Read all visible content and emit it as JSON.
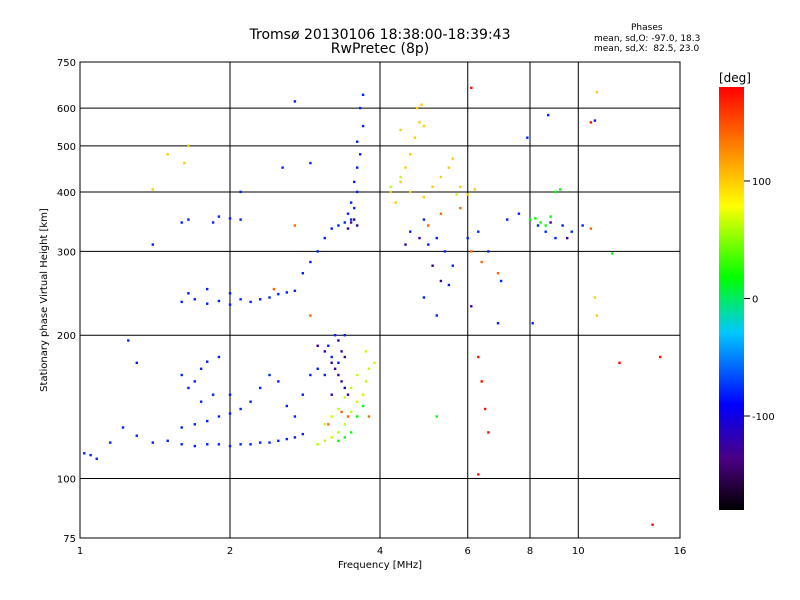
{
  "header": {
    "title_line1": "Tromsø 20130106 18:38:00-18:39:43",
    "title_line2": "RwPretec (8p)",
    "stats_title": "Phases",
    "stats_o": "mean, sd,O: -97.0, 18.3",
    "stats_x": "mean, sd,X:  82.5, 23.0"
  },
  "chart_data": {
    "type": "scatter",
    "xlabel": "Frequency [MHz]",
    "ylabel": "Stationary phase Virtual Height [km]",
    "x_scale": "log",
    "y_scale": "log",
    "xlim": [
      1,
      16
    ],
    "ylim": [
      75,
      750
    ],
    "x_ticks": [
      1,
      2,
      4,
      6,
      8,
      10,
      16
    ],
    "y_ticks": [
      75,
      100,
      200,
      300,
      400,
      500,
      600,
      750
    ],
    "grid": true,
    "colorbar": {
      "title": "[deg]",
      "range": [
        -180,
        180
      ],
      "ticks": [
        100,
        0,
        -100
      ],
      "colors": [
        "#000000",
        "#4b0082",
        "#0000ff",
        "#00c8ff",
        "#00ff00",
        "#ffff00",
        "#ff8000",
        "#ff0000"
      ]
    },
    "series": [
      {
        "phase": -90,
        "points": [
          [
            1.02,
            113
          ],
          [
            1.05,
            112
          ],
          [
            1.08,
            110
          ],
          [
            1.15,
            119
          ],
          [
            1.22,
            128
          ],
          [
            1.3,
            123
          ],
          [
            1.4,
            119
          ],
          [
            1.5,
            120
          ],
          [
            1.6,
            118
          ],
          [
            1.7,
            117
          ],
          [
            1.8,
            118
          ],
          [
            1.9,
            118
          ],
          [
            2.0,
            117
          ],
          [
            2.1,
            118
          ],
          [
            2.2,
            118
          ],
          [
            2.3,
            119
          ],
          [
            2.4,
            119
          ],
          [
            2.5,
            120
          ],
          [
            2.6,
            121
          ],
          [
            2.7,
            122
          ],
          [
            2.8,
            124
          ],
          [
            1.6,
            128
          ],
          [
            1.7,
            130
          ],
          [
            1.8,
            132
          ],
          [
            1.9,
            135
          ],
          [
            2.0,
            137
          ],
          [
            2.1,
            140
          ],
          [
            1.75,
            145
          ],
          [
            1.85,
            150
          ],
          [
            1.65,
            155
          ],
          [
            1.7,
            160
          ],
          [
            1.6,
            165
          ],
          [
            1.75,
            170
          ],
          [
            1.8,
            176
          ],
          [
            1.9,
            180
          ],
          [
            2.0,
            150
          ],
          [
            2.2,
            145
          ],
          [
            2.3,
            155
          ],
          [
            2.5,
            160
          ],
          [
            2.6,
            142
          ],
          [
            2.7,
            135
          ],
          [
            2.4,
            165
          ],
          [
            2.8,
            150
          ],
          [
            2.9,
            165
          ],
          [
            3.0,
            170
          ],
          [
            3.1,
            165
          ],
          [
            3.2,
            180
          ],
          [
            3.3,
            175
          ],
          [
            3.15,
            190
          ],
          [
            3.25,
            200
          ],
          [
            3.4,
            200
          ],
          [
            1.6,
            235
          ],
          [
            1.7,
            238
          ],
          [
            1.8,
            233
          ],
          [
            1.9,
            236
          ],
          [
            2.0,
            232
          ],
          [
            2.1,
            238
          ],
          [
            2.2,
            235
          ],
          [
            2.3,
            238
          ],
          [
            2.4,
            240
          ],
          [
            2.5,
            244
          ],
          [
            2.6,
            246
          ],
          [
            2.7,
            248
          ],
          [
            1.65,
            245
          ],
          [
            1.8,
            250
          ],
          [
            2.0,
            245
          ],
          [
            1.6,
            345
          ],
          [
            1.65,
            350
          ],
          [
            1.85,
            345
          ],
          [
            1.9,
            355
          ],
          [
            2.0,
            352
          ],
          [
            2.1,
            350
          ],
          [
            2.8,
            270
          ],
          [
            2.9,
            285
          ],
          [
            3.0,
            300
          ],
          [
            3.1,
            320
          ],
          [
            3.2,
            335
          ],
          [
            3.3,
            340
          ],
          [
            3.4,
            345
          ],
          [
            3.5,
            350
          ],
          [
            3.5,
            380
          ],
          [
            3.6,
            400
          ],
          [
            3.55,
            420
          ],
          [
            3.6,
            450
          ],
          [
            3.65,
            480
          ],
          [
            3.6,
            510
          ],
          [
            3.7,
            550
          ],
          [
            3.65,
            600
          ],
          [
            3.7,
            640
          ],
          [
            3.45,
            360
          ],
          [
            3.55,
            370
          ],
          [
            4.6,
            330
          ],
          [
            4.9,
            350
          ],
          [
            5.0,
            310
          ],
          [
            5.2,
            320
          ],
          [
            5.4,
            300
          ],
          [
            5.6,
            280
          ],
          [
            6.0,
            320
          ],
          [
            6.3,
            330
          ],
          [
            6.6,
            300
          ],
          [
            7.2,
            350
          ],
          [
            7.6,
            360
          ],
          [
            8.3,
            340
          ],
          [
            8.6,
            330
          ],
          [
            9.0,
            320
          ],
          [
            9.3,
            340
          ],
          [
            9.7,
            330
          ],
          [
            10.2,
            340
          ],
          [
            2.7,
            620
          ],
          [
            2.9,
            460
          ],
          [
            2.55,
            450
          ],
          [
            2.1,
            400
          ],
          [
            1.4,
            310
          ],
          [
            5.5,
            255
          ],
          [
            7.0,
            260
          ],
          [
            5.2,
            220
          ],
          [
            6.9,
            212
          ],
          [
            8.1,
            212
          ],
          [
            4.9,
            240
          ],
          [
            8.7,
            580
          ],
          [
            10.8,
            565
          ],
          [
            1.3,
            175
          ],
          [
            1.25,
            195
          ],
          [
            7.9,
            520
          ]
        ]
      },
      {
        "phase": -130,
        "points": [
          [
            3.0,
            190
          ],
          [
            3.1,
            185
          ],
          [
            3.2,
            175
          ],
          [
            3.3,
            165
          ],
          [
            3.35,
            160
          ],
          [
            3.4,
            155
          ],
          [
            3.45,
            150
          ],
          [
            3.2,
            150
          ],
          [
            3.25,
            170
          ],
          [
            3.35,
            185
          ],
          [
            3.3,
            195
          ],
          [
            3.4,
            180
          ],
          [
            3.5,
            345
          ],
          [
            3.6,
            340
          ],
          [
            3.55,
            350
          ],
          [
            3.45,
            335
          ],
          [
            4.5,
            310
          ],
          [
            4.8,
            320
          ],
          [
            5.1,
            280
          ],
          [
            5.3,
            260
          ],
          [
            6.1,
            230
          ],
          [
            8.8,
            345
          ],
          [
            9.5,
            320
          ]
        ]
      },
      {
        "phase": 0,
        "points": [
          [
            3.3,
            120
          ],
          [
            3.4,
            122
          ],
          [
            3.5,
            125
          ],
          [
            3.6,
            135
          ],
          [
            3.7,
            142
          ],
          [
            8.0,
            350
          ],
          [
            8.2,
            352
          ],
          [
            8.4,
            345
          ],
          [
            8.6,
            340
          ],
          [
            8.8,
            355
          ],
          [
            9.0,
            400
          ],
          [
            9.2,
            405
          ],
          [
            11.7,
            297
          ],
          [
            5.2,
            135
          ]
        ]
      },
      {
        "phase": 60,
        "points": [
          [
            3.0,
            118
          ],
          [
            3.1,
            120
          ],
          [
            3.2,
            122
          ],
          [
            3.3,
            125
          ],
          [
            3.4,
            130
          ],
          [
            3.5,
            138
          ],
          [
            3.6,
            145
          ],
          [
            3.7,
            150
          ],
          [
            3.75,
            160
          ],
          [
            3.8,
            170
          ],
          [
            3.6,
            165
          ],
          [
            3.5,
            155
          ],
          [
            3.4,
            148
          ],
          [
            3.3,
            140
          ],
          [
            3.2,
            135
          ],
          [
            3.1,
            130
          ],
          [
            3.9,
            175
          ],
          [
            3.75,
            185
          ],
          [
            5.7,
            395
          ],
          [
            4.2,
            410
          ],
          [
            4.4,
            430
          ]
        ]
      },
      {
        "phase": 100,
        "points": [
          [
            4.2,
            400
          ],
          [
            4.4,
            420
          ],
          [
            4.5,
            450
          ],
          [
            4.6,
            480
          ],
          [
            4.7,
            520
          ],
          [
            4.8,
            560
          ],
          [
            4.75,
            600
          ],
          [
            4.85,
            610
          ],
          [
            4.9,
            550
          ],
          [
            4.4,
            540
          ],
          [
            4.6,
            400
          ],
          [
            4.9,
            390
          ],
          [
            5.1,
            410
          ],
          [
            5.3,
            430
          ],
          [
            5.5,
            450
          ],
          [
            5.6,
            470
          ],
          [
            5.8,
            410
          ],
          [
            6.0,
            395
          ],
          [
            6.2,
            405
          ],
          [
            4.3,
            380
          ],
          [
            1.65,
            500
          ],
          [
            1.62,
            460
          ],
          [
            1.5,
            480
          ],
          [
            1.4,
            405
          ],
          [
            10.9,
            648
          ],
          [
            10.8,
            240
          ],
          [
            10.9,
            220
          ]
        ]
      },
      {
        "phase": 140,
        "points": [
          [
            3.15,
            130
          ],
          [
            3.35,
            138
          ],
          [
            3.45,
            135
          ],
          [
            5.0,
            340
          ],
          [
            5.3,
            360
          ],
          [
            5.8,
            370
          ],
          [
            6.1,
            300
          ],
          [
            6.4,
            285
          ],
          [
            6.9,
            270
          ],
          [
            10.6,
            335
          ],
          [
            2.7,
            340
          ],
          [
            2.45,
            250
          ],
          [
            2.9,
            220
          ],
          [
            3.8,
            135
          ]
        ]
      },
      {
        "phase": 175,
        "points": [
          [
            6.3,
            180
          ],
          [
            6.4,
            160
          ],
          [
            6.5,
            140
          ],
          [
            6.6,
            125
          ],
          [
            6.3,
            102
          ],
          [
            6.1,
            662
          ],
          [
            10.6,
            560
          ],
          [
            14.1,
            80
          ],
          [
            14.6,
            180
          ],
          [
            12.1,
            175
          ]
        ]
      }
    ]
  }
}
